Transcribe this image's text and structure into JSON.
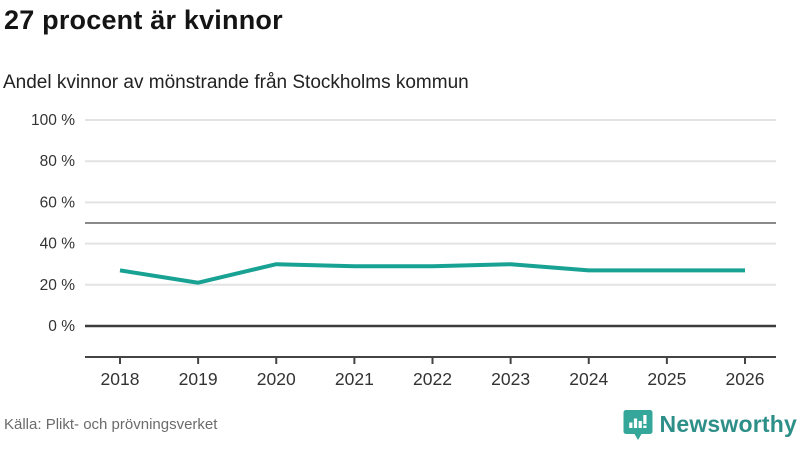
{
  "header": {
    "title": "27 procent är kvinnor",
    "subtitle": "Andel kvinnor av mönstrande från Stockholms kommun"
  },
  "footer": {
    "source": "Källa: Plikt- och prövningsverket",
    "logo": {
      "name": "Newsworthy",
      "icon": "bar-chart-speech-bubble-icon"
    }
  },
  "colors": {
    "line": "#17a294",
    "grid_light": "#e3e3e3",
    "grid_reference": "#8a8a8a",
    "baseline": "#3c3c3c",
    "axis": "#444444",
    "tick_label": "#333333",
    "logo_teal": "#35a79a",
    "wordmark_teal": "#2e8f89"
  },
  "chart_data": {
    "type": "line",
    "title": "27 procent är kvinnor",
    "subtitle": "Andel kvinnor av mönstrande från Stockholms kommun",
    "x": [
      2018,
      2019,
      2020,
      2021,
      2022,
      2023,
      2024,
      2025,
      2026
    ],
    "series": [
      {
        "name": "Andel kvinnor av mönstrande",
        "values": [
          27,
          21,
          30,
          29,
          29,
          30,
          27,
          27,
          27
        ]
      }
    ],
    "xlabel": "",
    "ylabel": "",
    "ylim": [
      0,
      100
    ],
    "yticks": [
      0,
      20,
      40,
      60,
      80,
      100
    ],
    "ytick_suffix": " %",
    "reference_line": 50,
    "grid": "horizontal",
    "legend_position": "none",
    "latest_value_pct": 27
  }
}
